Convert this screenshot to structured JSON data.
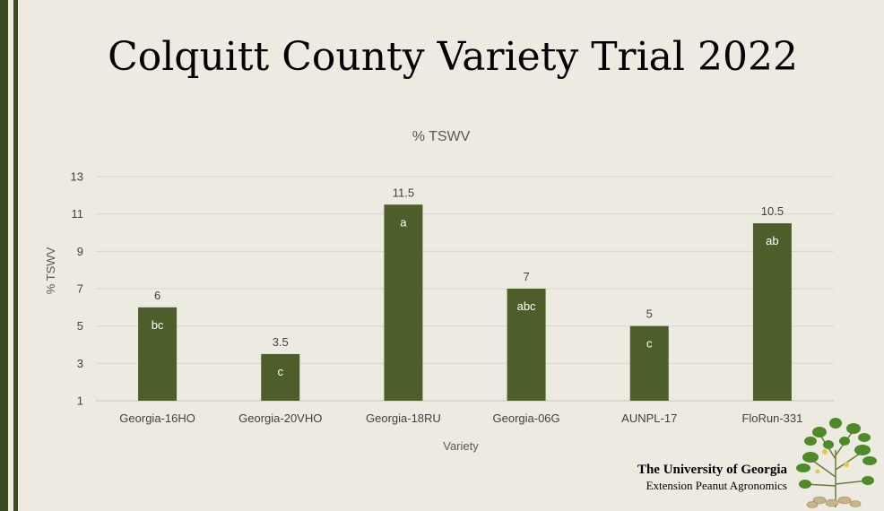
{
  "slide": {
    "title": "Colquitt County Variety Trial 2022"
  },
  "footer": {
    "university": "The University of Georgia",
    "department": "Extension Peanut Agronomics"
  },
  "colors": {
    "background": "#edebe1",
    "bar": "#4e5e2a",
    "accent_bar": "#3b4a22",
    "gridline": "#d9d7cd",
    "axis_text": "#404040"
  },
  "chart_data": {
    "type": "bar",
    "title": "% TSWV",
    "xlabel": "Variety",
    "ylabel": "% TSWV",
    "ylim": [
      1,
      13
    ],
    "yticks": [
      1,
      3,
      5,
      7,
      9,
      11,
      13
    ],
    "grid": true,
    "legend": "none",
    "categories": [
      "Georgia-16HO",
      "Georgia-20VHO",
      "Georgia-18RU",
      "Georgia-06G",
      "AUNPL-17",
      "FloRun-331"
    ],
    "series": [
      {
        "values": [
          6,
          3.5,
          11.5,
          7,
          5,
          10.5
        ],
        "data_labels": [
          "6",
          "3.5",
          "11.5",
          "7",
          "5",
          "10.5"
        ],
        "significance_letters": [
          "bc",
          "c",
          "a",
          "abc",
          "c",
          "ab"
        ]
      }
    ]
  }
}
